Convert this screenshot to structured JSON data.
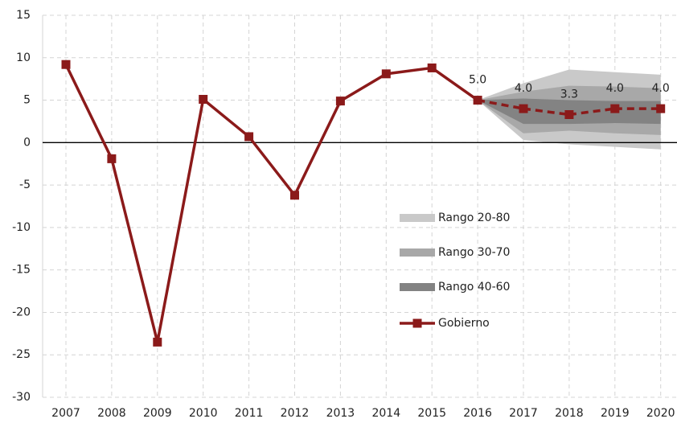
{
  "chart_data": {
    "type": "line",
    "categories": [
      "2007",
      "2008",
      "2009",
      "2010",
      "2011",
      "2012",
      "2013",
      "2014",
      "2015",
      "2016",
      "2017",
      "2018",
      "2019",
      "2020"
    ],
    "ylim": [
      -30,
      15
    ],
    "yticks": [
      -30,
      -25,
      -20,
      -15,
      -10,
      -5,
      0,
      5,
      10,
      15
    ],
    "grid": true,
    "legend": "right",
    "projection_start": "2016",
    "bands": [
      {
        "name": "Rango 20-80",
        "color": "#c9c9c9",
        "low": [
          null,
          null,
          null,
          null,
          null,
          null,
          null,
          null,
          null,
          5.0,
          0.3,
          -0.2,
          -0.5,
          -0.8
        ],
        "high": [
          null,
          null,
          null,
          null,
          null,
          null,
          null,
          null,
          null,
          5.0,
          7.0,
          8.6,
          8.3,
          8.0
        ]
      },
      {
        "name": "Rango 30-70",
        "color": "#a8a8a8",
        "low": [
          null,
          null,
          null,
          null,
          null,
          null,
          null,
          null,
          null,
          5.0,
          1.1,
          1.4,
          1.1,
          0.9
        ],
        "high": [
          null,
          null,
          null,
          null,
          null,
          null,
          null,
          null,
          null,
          5.0,
          6.0,
          6.7,
          6.6,
          6.4
        ]
      },
      {
        "name": "Rango 40-60",
        "color": "#838383",
        "low": [
          null,
          null,
          null,
          null,
          null,
          null,
          null,
          null,
          null,
          5.0,
          2.2,
          2.2,
          2.3,
          2.2
        ],
        "high": [
          null,
          null,
          null,
          null,
          null,
          null,
          null,
          null,
          null,
          5.0,
          5.2,
          5.0,
          4.9,
          4.9
        ]
      }
    ],
    "series": [
      {
        "name": "Gobierno",
        "color": "#8b1a1a",
        "values": [
          9.2,
          -1.9,
          -23.5,
          5.1,
          0.7,
          -6.2,
          4.9,
          8.1,
          8.8,
          5.0,
          4.0,
          3.3,
          4.0,
          4.0
        ],
        "value_labels": [
          null,
          null,
          null,
          null,
          null,
          null,
          null,
          null,
          null,
          "5.0",
          "4.0",
          "3.3",
          "4.0",
          "4.0"
        ]
      }
    ]
  }
}
